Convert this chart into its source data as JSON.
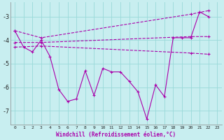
{
  "xlabel": "Windchill (Refroidissement éolien,°C)",
  "background_color": "#c8eef0",
  "grid_color": "#99d9d9",
  "line_color": "#aa00aa",
  "xlim": [
    -0.5,
    23.5
  ],
  "ylim": [
    -7.6,
    -2.4
  ],
  "yticks": [
    -7,
    -6,
    -5,
    -4,
    -3
  ],
  "xticks": [
    0,
    1,
    2,
    3,
    4,
    5,
    6,
    7,
    8,
    9,
    10,
    11,
    12,
    13,
    14,
    15,
    16,
    17,
    18,
    19,
    20,
    21,
    22,
    23
  ],
  "series": [
    {
      "x": [
        0,
        3,
        20,
        22
      ],
      "y": [
        -3.6,
        -3.9,
        -2.9,
        -2.75
      ],
      "style": "--",
      "marker": "+"
    },
    {
      "x": [
        0,
        3,
        20,
        22
      ],
      "y": [
        -4.1,
        -4.1,
        -3.85,
        -3.85
      ],
      "style": "--",
      "marker": "+"
    },
    {
      "x": [
        0,
        3,
        20,
        22
      ],
      "y": [
        -4.3,
        -4.25,
        -4.55,
        -4.6
      ],
      "style": "--",
      "marker": "+"
    },
    {
      "x": [
        0,
        1,
        2,
        3,
        4,
        5,
        6,
        7,
        8,
        9,
        10,
        11,
        12,
        13,
        14,
        15,
        16,
        17,
        18,
        19,
        20,
        21,
        22
      ],
      "y": [
        -3.6,
        -4.3,
        -4.5,
        -4.0,
        -4.7,
        -6.1,
        -6.6,
        -6.5,
        -5.3,
        -6.35,
        -5.2,
        -5.35,
        -5.35,
        -5.75,
        -6.2,
        -7.35,
        -5.9,
        -6.4,
        -3.9,
        -3.9,
        -3.9,
        -2.8,
        -3.0
      ],
      "style": "-",
      "marker": "+"
    }
  ]
}
